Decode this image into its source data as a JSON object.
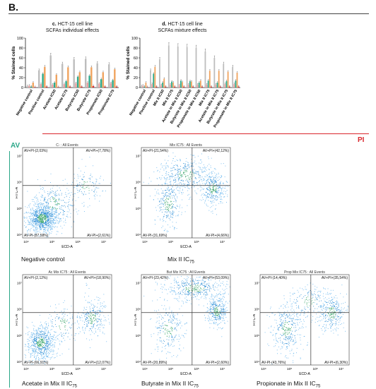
{
  "panel_label": "B.",
  "pi_label": "PI",
  "av_label": "AV",
  "colors": {
    "gray": "#bdbdbd",
    "green": "#2dab8c",
    "orange": "#f0a45f",
    "red": "#d9262c",
    "pink": "#e9a0a0"
  },
  "chart_data": [
    {
      "type": "bar",
      "title_letter": "c.",
      "title": "HCT-15 cell line",
      "subtitle": "SCFAs individual effects",
      "ylabel": "% Stained cells",
      "ylim": [
        0,
        100
      ],
      "yticks": [
        0,
        20,
        40,
        60,
        80,
        100
      ],
      "categories": [
        "Negative control",
        "Positive control",
        "Acetate IC50",
        "Acetate IC75",
        "Butyrate IC50",
        "Butyrate IC75",
        "Propionate IC50",
        "Propionate IC75"
      ],
      "series": [
        {
          "color": "gray",
          "values": [
            3,
            35,
            65,
            48,
            57,
            58,
            49,
            47
          ]
        },
        {
          "color": "pink",
          "values": [
            4,
            7,
            6,
            7,
            9,
            10,
            8,
            9
          ]
        },
        {
          "color": "green",
          "values": [
            2,
            28,
            10,
            13,
            22,
            24,
            17,
            15
          ]
        },
        {
          "color": "orange",
          "values": [
            10,
            42,
            26,
            41,
            31,
            41,
            31,
            37
          ]
        },
        {
          "color": "red",
          "values": [
            1,
            2,
            1,
            2,
            2,
            3,
            2,
            2
          ]
        }
      ]
    },
    {
      "type": "bar",
      "title_letter": "d.",
      "title": "HCT-15 cell line",
      "subtitle": "SCFAs mixture effects",
      "ylabel": "% Stained cells",
      "ylim": [
        0,
        100
      ],
      "yticks": [
        0,
        20,
        40,
        60,
        80,
        100
      ],
      "categories": [
        "Negative control",
        "Positive control",
        "Mix II IC50",
        "Mix II IC75",
        "Acetate in Mix II IC50",
        "Butyrate in Mix II IC50",
        "Propionate in Mix II IC50",
        "Mix II IC75",
        "Acetate in Mix II IC75",
        "Butyrate in Mix II IC75",
        "Propionate in Mix II IC75"
      ],
      "series": [
        {
          "color": "gray",
          "values": [
            3,
            35,
            57,
            85,
            83,
            82,
            80,
            73,
            60,
            48,
            42
          ]
        },
        {
          "color": "pink",
          "values": [
            4,
            7,
            5,
            6,
            5,
            6,
            6,
            6,
            6,
            7,
            7
          ]
        },
        {
          "color": "green",
          "values": [
            2,
            28,
            10,
            12,
            14,
            13,
            10,
            14,
            10,
            13,
            14
          ]
        },
        {
          "color": "orange",
          "values": [
            10,
            42,
            18,
            10,
            11,
            12,
            14,
            34,
            34,
            32,
            30
          ]
        },
        {
          "color": "red",
          "values": [
            1,
            2,
            2,
            2,
            2,
            2,
            2,
            2,
            2,
            2,
            2
          ]
        }
      ]
    }
  ],
  "flow_plots": [
    {
      "title": "C- : All Events",
      "q_ul": "AV+PI-(2,03%)",
      "q_ur": "AV+PI+(7,78%)",
      "q_ll": "AV-PI-(87,58%)",
      "q_lr": "AV-PI+(2,61%)",
      "caption": "Negative control",
      "caption_sub": "",
      "pattern": "neg"
    },
    {
      "title": "Mix IC75 : All Events",
      "q_ul": "AV+PI-(21,54%)",
      "q_ur": "AV+PI+(42,12%)",
      "q_ll": "AV-PI-(31,69%)",
      "q_lr": "AV-PI+(4,66%)",
      "caption": "Mix II IC",
      "caption_sub": "75",
      "pattern": "mix"
    },
    {
      "title": "Ac Mix IC75 : All Events",
      "q_ul": "AV+PI-(2,12%)",
      "q_ur": "AV+PI+(18,90%)",
      "q_ll": "AV-PI-(66,91%)",
      "q_lr": "AV-PI+(12,07%)",
      "caption": "Acetate in Mix II IC",
      "caption_sub": "75",
      "pattern": "ac"
    },
    {
      "title": "But Mix IC75 : All Events",
      "q_ul": "AV+PI-(23,42%)",
      "q_ur": "AV+PI+(53,09%)",
      "q_ll": "AV-PI-(20,89%)",
      "q_lr": "AV-PI+(2,60%)",
      "caption": "Butyrate in Mix II IC",
      "caption_sub": "75",
      "pattern": "but"
    },
    {
      "title": "Prop Mix IC75 : All Events",
      "q_ul": "AV+PI-(14,40%)",
      "q_ur": "AV+PI+(35,54%)",
      "q_ll": "AV-PI-(43,76%)",
      "q_lr": "AV-PI+(6,30%)",
      "caption": "Propionate in Mix II IC",
      "caption_sub": "75",
      "pattern": "prop"
    }
  ],
  "flow_axes": {
    "xlabel": "ECD-A",
    "ylabel": "FITC-A",
    "ticks": [
      "10⁴",
      "10⁵",
      "10⁶",
      "10⁷"
    ]
  }
}
